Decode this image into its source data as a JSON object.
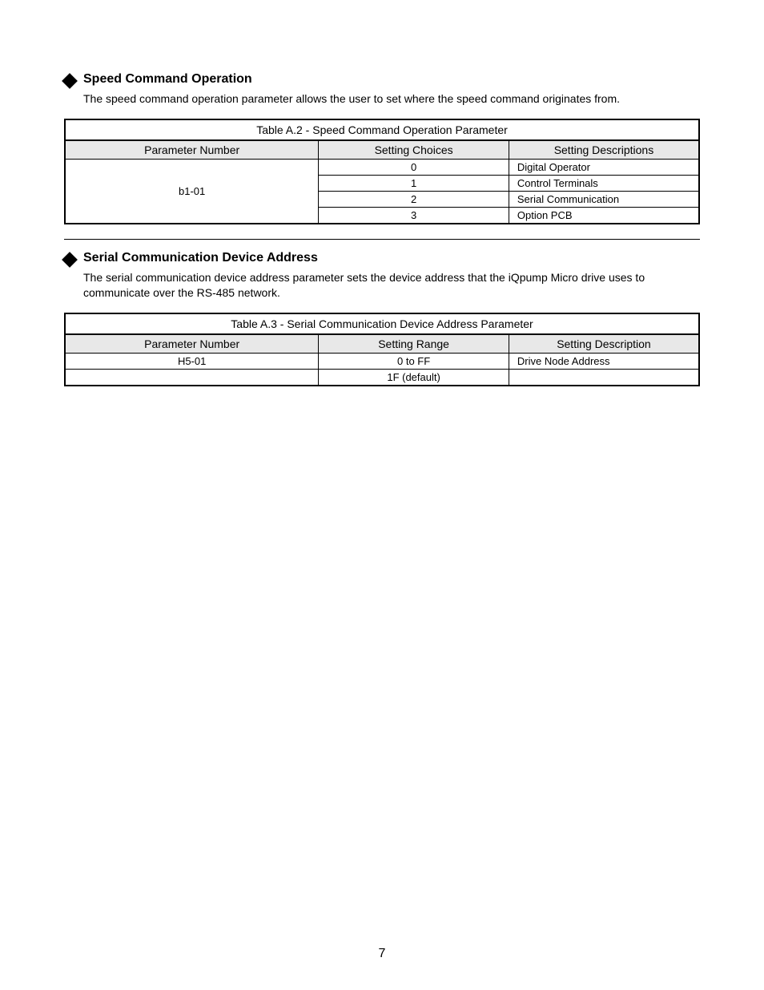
{
  "sections": [
    {
      "title": "Speed Command Operation",
      "desc": "The speed command operation parameter allows the user to set where the speed command originates from."
    },
    {
      "title": "Serial Communication Device Address",
      "desc": "The serial communication device address parameter sets the device address that the iQpump Micro drive uses to communicate over the RS-485 network."
    }
  ],
  "table1": {
    "caption": "Table A.2 - Speed Command Operation Parameter",
    "headers": [
      "Parameter Number",
      "Setting Choices",
      "Setting Descriptions"
    ],
    "paramNumber": "b1-01",
    "rows": [
      {
        "choice": "0",
        "desc": "Digital Operator"
      },
      {
        "choice": "1",
        "desc": "Control Terminals"
      },
      {
        "choice": "2",
        "desc": "Serial Communication"
      },
      {
        "choice": "3",
        "desc": "Option PCB"
      }
    ]
  },
  "table2": {
    "caption": "Table A.3 - Serial Communication Device Address Parameter",
    "headers": [
      "Parameter Number",
      "Setting Range",
      "Setting Description"
    ],
    "rows": [
      {
        "pn": "H5-01",
        "range": "0 to FF",
        "desc": "Drive Node Address"
      },
      {
        "pn": "",
        "range": "1F (default)",
        "desc": ""
      }
    ]
  },
  "pageNumber": "7"
}
